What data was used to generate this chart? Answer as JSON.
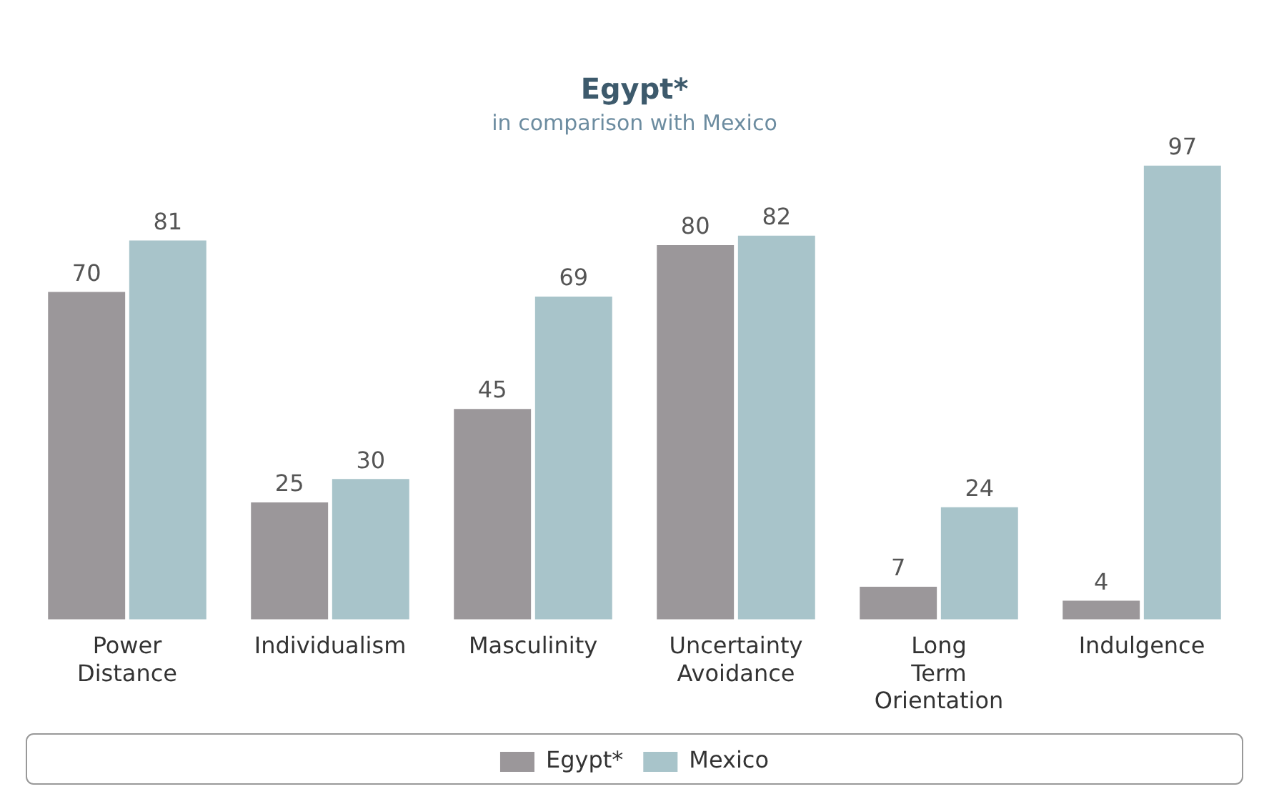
{
  "chart_data": {
    "type": "bar",
    "title": "Egypt*",
    "subtitle": "in comparison with Mexico",
    "categories": [
      "Power Distance",
      "Individualism",
      "Masculinity",
      "Uncertainty Avoidance",
      "Long Term Orientation",
      "Indulgence"
    ],
    "series": [
      {
        "name": "Egypt*",
        "color": "#9b979a",
        "values": [
          70,
          25,
          45,
          80,
          7,
          4
        ]
      },
      {
        "name": "Mexico",
        "color": "#a8c4ca",
        "values": [
          81,
          30,
          69,
          82,
          24,
          97
        ]
      }
    ],
    "data_labels": true,
    "grid": false,
    "legend": "bottom"
  }
}
